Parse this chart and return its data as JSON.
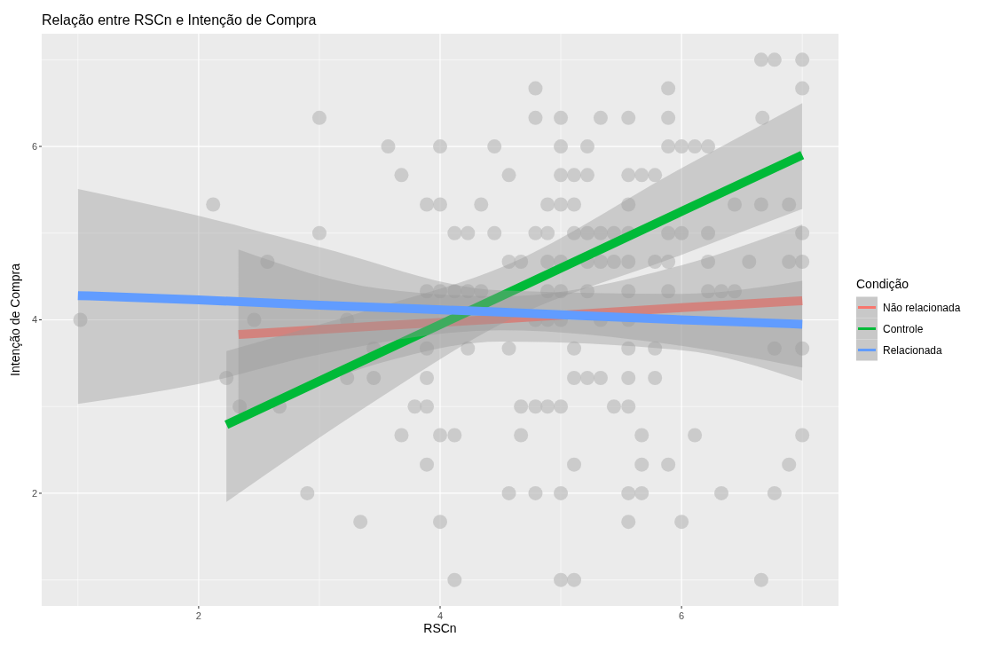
{
  "chart_data": {
    "type": "scatter",
    "title": "Relação entre RSCn e Intenção de Compra",
    "xlabel": "RSCn",
    "ylabel": "Intenção de Compra",
    "legend_title": "Condição",
    "xlim": [
      0.7,
      7.3
    ],
    "ylim": [
      0.7,
      7.3
    ],
    "xticks": [
      2,
      4,
      6
    ],
    "yticks": [
      2,
      4,
      6
    ],
    "grid": true,
    "legend": "right",
    "series": [
      {
        "marker": "circle",
        "color": "#bdbdbd",
        "x": [
          6.66,
          6.77,
          7.0,
          4.79,
          5.89,
          7.0,
          3.0,
          4.79,
          5.0,
          5.33,
          5.56,
          5.89,
          6.67,
          3.57,
          4.0,
          4.45,
          5.0,
          5.22,
          5.89,
          6.0,
          6.11,
          6.22,
          3.68,
          4.57,
          5.0,
          5.11,
          5.22,
          5.56,
          5.67,
          5.78,
          2.12,
          3.89,
          4.0,
          4.34,
          4.89,
          5.0,
          5.11,
          5.56,
          6.44,
          6.66,
          6.89,
          3.0,
          4.12,
          4.23,
          4.45,
          4.79,
          4.89,
          5.11,
          5.22,
          5.33,
          5.44,
          5.56,
          5.89,
          6.0,
          6.22,
          7.0,
          2.57,
          4.57,
          4.67,
          4.89,
          5.0,
          5.22,
          5.33,
          5.44,
          5.56,
          5.78,
          5.89,
          6.22,
          6.56,
          6.89,
          7.0,
          3.89,
          4.0,
          4.12,
          4.23,
          4.34,
          4.89,
          5.0,
          5.22,
          5.56,
          5.89,
          6.22,
          6.33,
          6.44,
          1.02,
          2.46,
          3.23,
          4.79,
          4.89,
          5.0,
          5.33,
          5.56,
          3.45,
          3.89,
          4.23,
          4.57,
          5.11,
          5.56,
          5.78,
          6.77,
          7.0,
          2.23,
          3.23,
          3.45,
          3.89,
          5.11,
          5.22,
          5.33,
          5.56,
          5.78,
          2.34,
          2.67,
          3.79,
          3.89,
          4.67,
          4.79,
          4.89,
          5.0,
          5.44,
          5.56,
          3.68,
          4.0,
          4.12,
          4.67,
          5.67,
          6.11,
          7.0,
          3.89,
          5.11,
          5.67,
          5.89,
          6.89,
          2.9,
          4.57,
          4.79,
          5.0,
          5.56,
          5.67,
          6.33,
          6.77,
          3.34,
          4.0,
          5.56,
          6.0,
          4.12,
          5.0,
          5.11,
          6.66
        ],
        "values": [
          7,
          7,
          7,
          6.67,
          6.67,
          6.67,
          6.33,
          6.33,
          6.33,
          6.33,
          6.33,
          6.33,
          6.33,
          6,
          6,
          6,
          6,
          6,
          6,
          6,
          6,
          6,
          5.67,
          5.67,
          5.67,
          5.67,
          5.67,
          5.67,
          5.67,
          5.67,
          5.33,
          5.33,
          5.33,
          5.33,
          5.33,
          5.33,
          5.33,
          5.33,
          5.33,
          5.33,
          5.33,
          5,
          5,
          5,
          5,
          5,
          5,
          5,
          5,
          5,
          5,
          5,
          5,
          5,
          5,
          5,
          4.67,
          4.67,
          4.67,
          4.67,
          4.67,
          4.67,
          4.67,
          4.67,
          4.67,
          4.67,
          4.67,
          4.67,
          4.67,
          4.67,
          4.67,
          4.33,
          4.33,
          4.33,
          4.33,
          4.33,
          4.33,
          4.33,
          4.33,
          4.33,
          4.33,
          4.33,
          4.33,
          4.33,
          4,
          4,
          4,
          4,
          4,
          4,
          4,
          4,
          3.67,
          3.67,
          3.67,
          3.67,
          3.67,
          3.67,
          3.67,
          3.67,
          3.67,
          3.33,
          3.33,
          3.33,
          3.33,
          3.33,
          3.33,
          3.33,
          3.33,
          3.33,
          3,
          3,
          3,
          3,
          3,
          3,
          3,
          3,
          3,
          3,
          2.67,
          2.67,
          2.67,
          2.67,
          2.67,
          2.67,
          2.67,
          2.33,
          2.33,
          2.33,
          2.33,
          2.33,
          2,
          2,
          2,
          2,
          2,
          2,
          2,
          2,
          1.67,
          1.67,
          1.67,
          1.67,
          1,
          1,
          1,
          1
        ]
      },
      {
        "type": "line",
        "marker": "none",
        "name": "Não relacionada",
        "color": "#f8766d",
        "x": [
          2.33,
          3.5,
          4.5,
          6,
          7
        ],
        "values": [
          3.83,
          3.93,
          4.01,
          4.14,
          4.22
        ],
        "lower": [
          2.85,
          3.5,
          3.75,
          3.65,
          3.3
        ],
        "upper": [
          4.81,
          4.36,
          4.27,
          4.63,
          5.1
        ]
      },
      {
        "type": "line",
        "marker": "none",
        "name": "Controle",
        "color": "#00ba38",
        "x": [
          2.23,
          3.5,
          4.5,
          6,
          7
        ],
        "values": [
          2.79,
          3.62,
          4.27,
          5.25,
          5.9
        ],
        "lower": [
          1.9,
          3.1,
          3.95,
          4.75,
          5.28
        ],
        "upper": [
          3.64,
          4.15,
          4.6,
          5.75,
          6.5
        ]
      },
      {
        "type": "line",
        "marker": "none",
        "name": "Relacionada",
        "color": "#619cff",
        "x": [
          1,
          2,
          3,
          4.5,
          6,
          7
        ],
        "values": [
          4.28,
          4.23,
          4.17,
          4.09,
          4.0,
          3.95
        ],
        "lower": [
          3.03,
          3.26,
          3.6,
          3.88,
          3.7,
          3.45
        ],
        "upper": [
          5.51,
          5.2,
          4.84,
          4.34,
          4.3,
          4.45
        ]
      }
    ]
  }
}
